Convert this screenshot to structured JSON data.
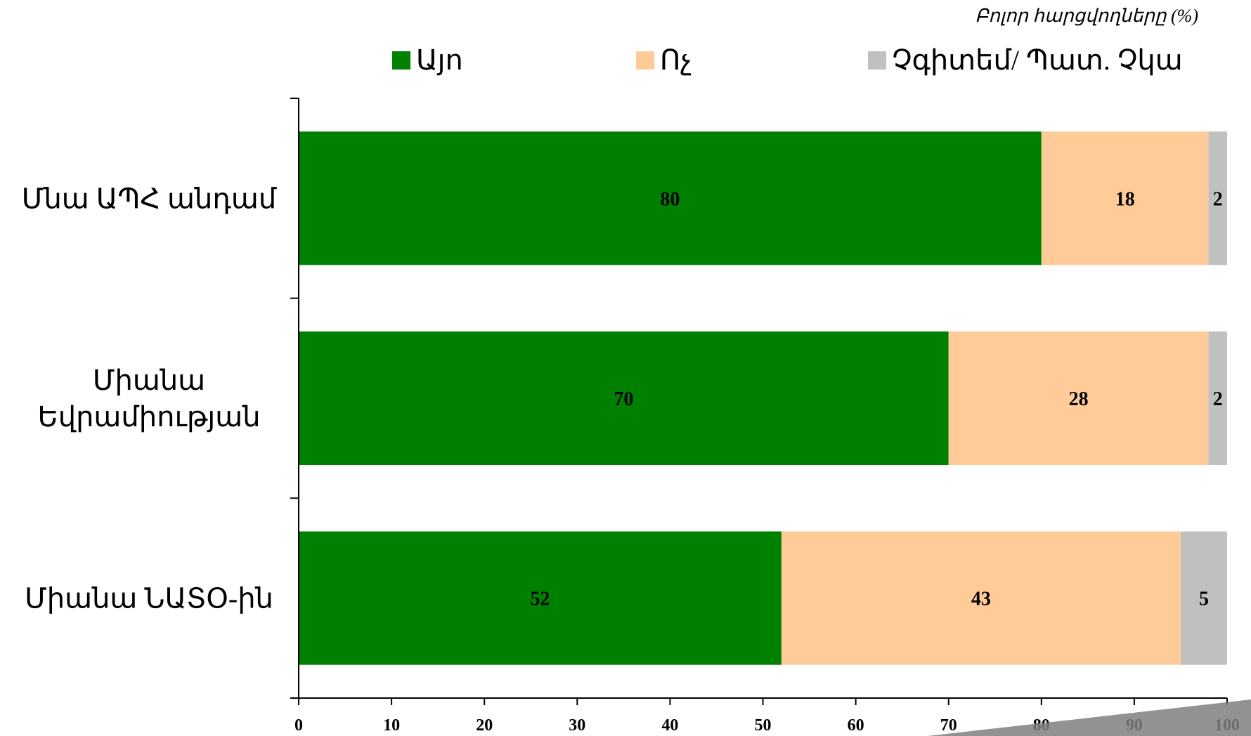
{
  "note": "Բոլոր հարցվողները (%)",
  "chart_data": {
    "type": "bar",
    "orientation": "horizontal",
    "stacked": true,
    "categories": [
      "Մնա ԱՊՀ անդամ",
      "Միանա Եվրամիության",
      "Միանա ՆԱՏՕ-ին"
    ],
    "category_lines": [
      [
        "Մնա ԱՊՀ անդամ"
      ],
      [
        "Միանա",
        "Եվրամիության"
      ],
      [
        "Միանա ՆԱՏՕ-ին"
      ]
    ],
    "series": [
      {
        "name": "Այո",
        "values": [
          80,
          70,
          52
        ],
        "color": "#008000"
      },
      {
        "name": "Ոչ",
        "values": [
          18,
          28,
          43
        ],
        "color": "#FFCC99"
      },
      {
        "name": "Չգիտեմ/ Պատ. Չկա",
        "values": [
          2,
          2,
          5
        ],
        "color": "#C0C0C0"
      }
    ],
    "xlim": [
      0,
      100
    ],
    "xticks": [
      0,
      10,
      20,
      30,
      40,
      50,
      60,
      70,
      80,
      90,
      100
    ],
    "grid": false,
    "legend_position": "top",
    "data_labels": true
  }
}
